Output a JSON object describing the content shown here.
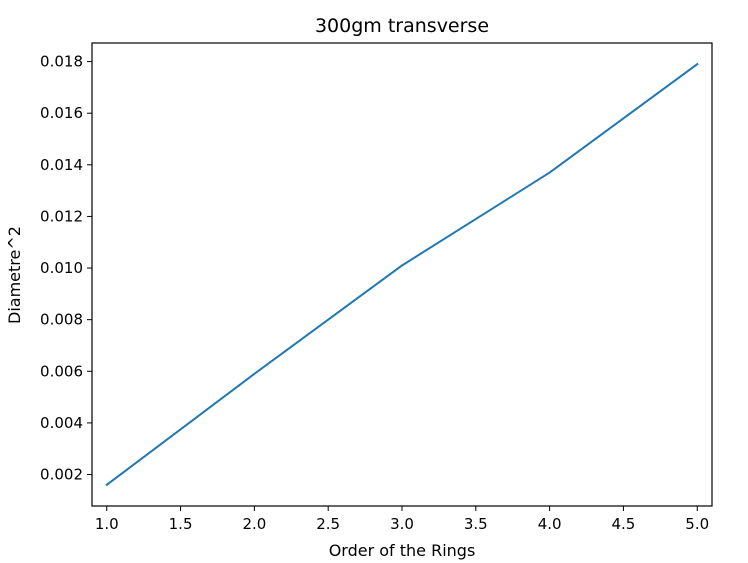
{
  "chart_data": {
    "type": "line",
    "title": "300gm transverse",
    "xlabel": "Order of the Rings",
    "ylabel": "Diametre^2",
    "x": [
      1,
      2,
      3,
      4,
      5
    ],
    "series": [
      {
        "values": [
          0.0016,
          0.0059,
          0.0101,
          0.0137,
          0.0179
        ],
        "color": "#1f77b4"
      }
    ],
    "xlim": [
      0.9,
      5.1
    ],
    "ylim": [
      0.00078,
      0.01872
    ],
    "xticks": [
      1.0,
      1.5,
      2.0,
      2.5,
      3.0,
      3.5,
      4.0,
      4.5,
      5.0
    ],
    "xtick_labels": [
      "1.0",
      "1.5",
      "2.0",
      "2.5",
      "3.0",
      "3.5",
      "4.0",
      "4.5",
      "5.0"
    ],
    "yticks": [
      0.002,
      0.004,
      0.006,
      0.008,
      0.01,
      0.012,
      0.014,
      0.016,
      0.018
    ],
    "ytick_labels": [
      "0.002",
      "0.004",
      "0.006",
      "0.008",
      "0.010",
      "0.012",
      "0.014",
      "0.016",
      "0.018"
    ],
    "grid": false,
    "legend": false
  }
}
